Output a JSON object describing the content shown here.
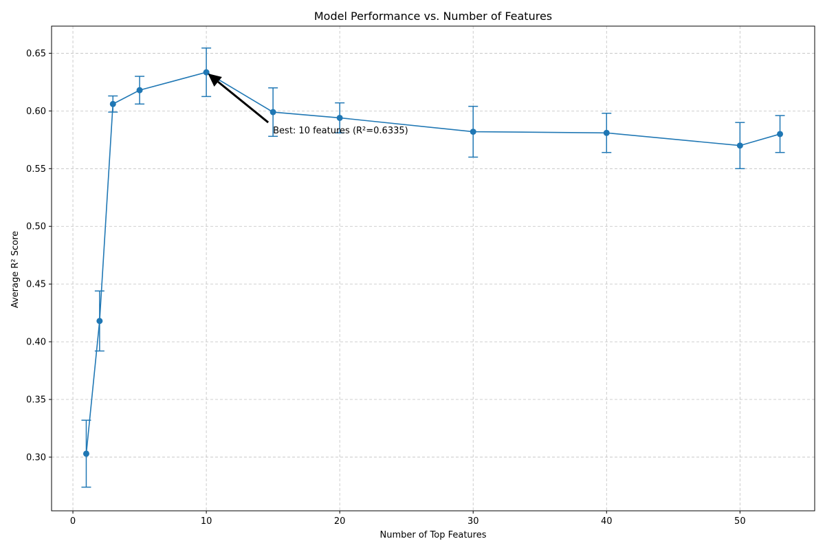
{
  "chart_data": {
    "type": "line",
    "title": "Model Performance vs. Number of Features",
    "xlabel": "Number of Top Features",
    "ylabel": "Average R² Score",
    "xlim": [
      -1.6,
      55.6
    ],
    "ylim": [
      0.2535,
      0.6735
    ],
    "xticks": [
      0,
      10,
      20,
      30,
      40,
      50
    ],
    "yticks": [
      0.3,
      0.35,
      0.4,
      0.45,
      0.5,
      0.55,
      0.6,
      0.65
    ],
    "ytick_labels": [
      "0.30",
      "0.35",
      "0.40",
      "0.45",
      "0.50",
      "0.55",
      "0.60",
      "0.65"
    ],
    "grid": true,
    "series": [
      {
        "color": "#1f77b4",
        "x": [
          1,
          2,
          3,
          5,
          10,
          15,
          20,
          30,
          40,
          50,
          53
        ],
        "y": [
          0.303,
          0.418,
          0.606,
          0.618,
          0.6335,
          0.599,
          0.594,
          0.582,
          0.581,
          0.57,
          0.58
        ],
        "yerr": [
          0.029,
          0.026,
          0.007,
          0.012,
          0.021,
          0.021,
          0.013,
          0.022,
          0.017,
          0.02,
          0.016
        ]
      }
    ],
    "annotation": {
      "text": "Best: 10 features (R²=0.6335)",
      "point": [
        10,
        0.6335
      ],
      "text_pos": [
        15,
        0.5835
      ]
    }
  }
}
